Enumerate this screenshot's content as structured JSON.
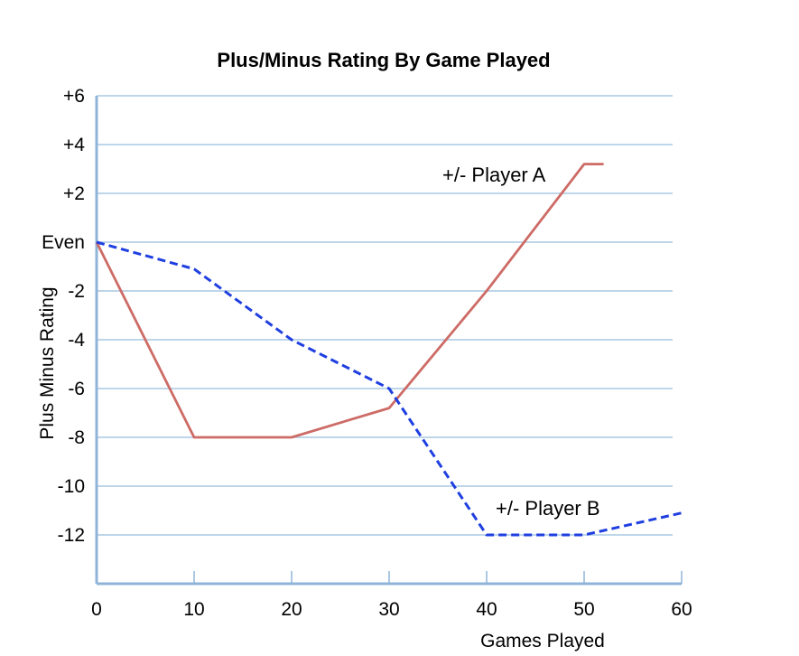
{
  "chart_data": {
    "type": "line",
    "title": "Plus/Minus Rating By Game Played",
    "xlabel": "Games Played",
    "ylabel": "Plus Minus Rating",
    "xlim": [
      0,
      60
    ],
    "ylim": [
      -14,
      6
    ],
    "x_ticks": [
      0,
      10,
      20,
      30,
      40,
      50,
      60
    ],
    "x_tick_labels": [
      "0",
      "10",
      "20",
      "30",
      "40",
      "50",
      "60"
    ],
    "y_ticks": [
      6,
      4,
      2,
      0,
      -2,
      -4,
      -6,
      -8,
      -10,
      -12
    ],
    "y_tick_labels": [
      "+6",
      "+4",
      "+2",
      "Even",
      "-2",
      "-4",
      "-6",
      "-8",
      "-10",
      "-12"
    ],
    "grid": true,
    "legend": "none",
    "series": [
      {
        "name": "+/- Player A",
        "color": "#cd6b66",
        "dash": "solid",
        "x": [
          0,
          10,
          20,
          30,
          40,
          50,
          52
        ],
        "y": [
          0,
          -8,
          -8,
          -6.8,
          -2,
          3.2,
          3.2
        ]
      },
      {
        "name": "+/- Player B",
        "color": "#1f3fe0",
        "dash": "dashed",
        "x": [
          0,
          10,
          20,
          30,
          40,
          50,
          60
        ],
        "y": [
          0,
          -1.1,
          -4,
          -6,
          -12,
          -12,
          -11.1
        ]
      }
    ]
  }
}
